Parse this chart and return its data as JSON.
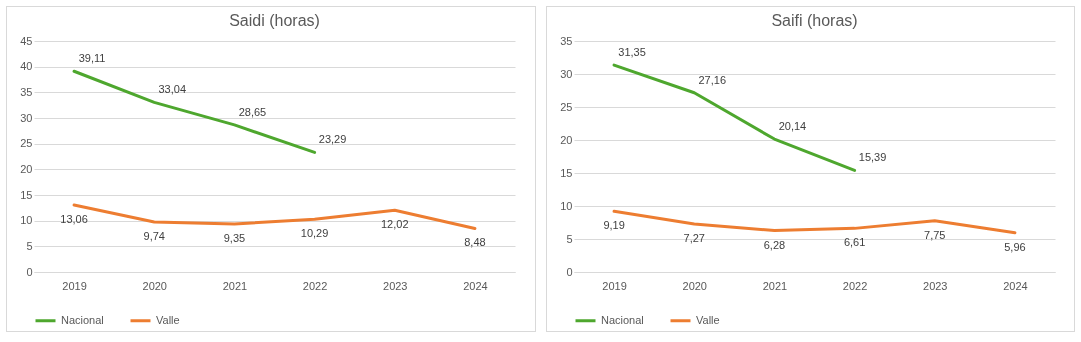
{
  "chart_data": [
    {
      "type": "line",
      "title": "Saidi (horas)",
      "categories": [
        "2019",
        "2020",
        "2021",
        "2022",
        "2023",
        "2024"
      ],
      "ylim": [
        0,
        45
      ],
      "yticks": [
        0,
        5,
        10,
        15,
        20,
        25,
        30,
        35,
        40,
        45
      ],
      "grid": "y",
      "legend": "bottom",
      "series": [
        {
          "name": "Nacional",
          "color": "#4ea72e",
          "values": [
            39.11,
            33.04,
            28.65,
            23.29,
            null,
            null
          ],
          "value_labels": [
            "39,11",
            "33,04",
            "28,65",
            "23,29",
            null,
            null
          ]
        },
        {
          "name": "Valle",
          "color": "#ed7d31",
          "values": [
            13.06,
            9.74,
            9.35,
            10.29,
            12.02,
            8.48
          ],
          "value_labels": [
            "13,06",
            "9,74",
            "9,35",
            "10,29",
            "12,02",
            "8,48"
          ]
        }
      ]
    },
    {
      "type": "line",
      "title": "Saifi (horas)",
      "categories": [
        "2019",
        "2020",
        "2021",
        "2022",
        "2023",
        "2024"
      ],
      "ylim": [
        0,
        35
      ],
      "yticks": [
        0,
        5,
        10,
        15,
        20,
        25,
        30,
        35
      ],
      "grid": "y",
      "legend": "bottom",
      "series": [
        {
          "name": "Nacional",
          "color": "#4ea72e",
          "values": [
            31.35,
            27.16,
            20.14,
            15.39,
            null,
            null
          ],
          "value_labels": [
            "31,35",
            "27,16",
            "20,14",
            "15,39",
            null,
            null
          ]
        },
        {
          "name": "Valle",
          "color": "#ed7d31",
          "values": [
            9.19,
            7.27,
            6.28,
            6.61,
            7.75,
            5.96
          ],
          "value_labels": [
            "9,19",
            "7,27",
            "6,28",
            "6,61",
            "7,75",
            "5,96"
          ]
        }
      ]
    }
  ]
}
